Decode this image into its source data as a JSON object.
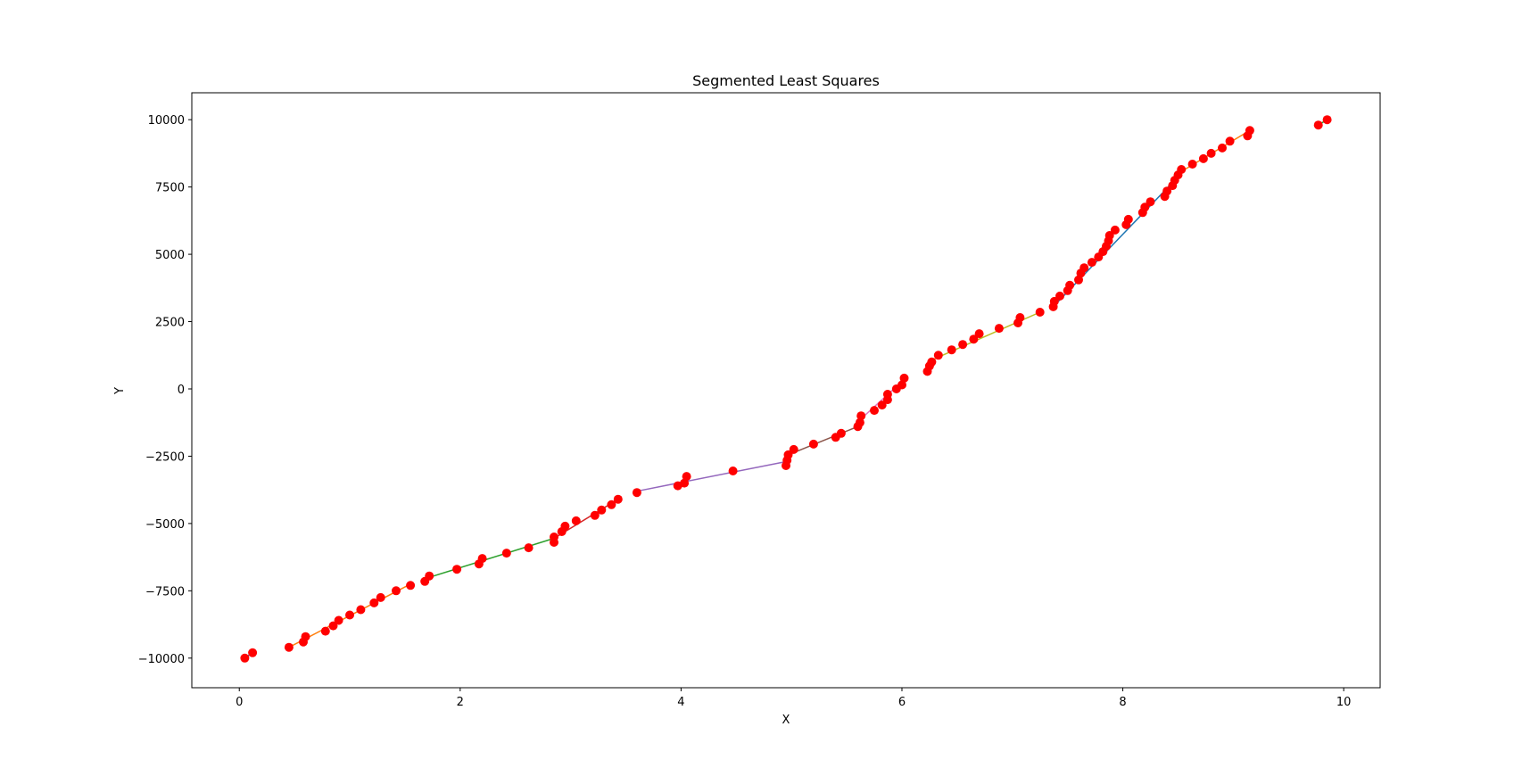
{
  "chart_data": {
    "type": "scatter",
    "title": "Segmented Least Squares",
    "xlabel": "X",
    "ylabel": "Y",
    "xlim": [
      -0.43,
      10.33
    ],
    "ylim": [
      -11100,
      11000
    ],
    "xticks": [
      0,
      2,
      4,
      6,
      8,
      10
    ],
    "yticks": [
      -10000,
      -7500,
      -5000,
      -2500,
      0,
      2500,
      5000,
      7500,
      10000
    ],
    "xtick_labels": [
      "0",
      "2",
      "4",
      "6",
      "8",
      "10"
    ],
    "ytick_labels": [
      "−10000",
      "−7500",
      "−5000",
      "−2500",
      "0",
      "2500",
      "5000",
      "7500",
      "10000"
    ],
    "grid": false,
    "colors": {
      "points": "#ff0000",
      "segments": [
        "#1f77b4",
        "#ff7f0e",
        "#2ca02c",
        "#d62728",
        "#9467bd",
        "#8c564b",
        "#e377c2",
        "#bcbd22",
        "#1f77b4",
        "#ff7f0e",
        "#2ca02c"
      ]
    },
    "points": [
      [
        0.05,
        -10000
      ],
      [
        0.12,
        -9800
      ],
      [
        0.45,
        -9600
      ],
      [
        0.58,
        -9400
      ],
      [
        0.6,
        -9200
      ],
      [
        0.78,
        -9000
      ],
      [
        0.85,
        -8800
      ],
      [
        0.9,
        -8600
      ],
      [
        1.0,
        -8400
      ],
      [
        1.1,
        -8200
      ],
      [
        1.22,
        -7950
      ],
      [
        1.28,
        -7750
      ],
      [
        1.42,
        -7500
      ],
      [
        1.55,
        -7300
      ],
      [
        1.68,
        -7150
      ],
      [
        1.72,
        -6950
      ],
      [
        1.97,
        -6700
      ],
      [
        2.17,
        -6500
      ],
      [
        2.2,
        -6300
      ],
      [
        2.42,
        -6100
      ],
      [
        2.62,
        -5900
      ],
      [
        2.85,
        -5700
      ],
      [
        2.85,
        -5500
      ],
      [
        2.92,
        -5300
      ],
      [
        2.95,
        -5100
      ],
      [
        3.05,
        -4900
      ],
      [
        3.22,
        -4700
      ],
      [
        3.28,
        -4500
      ],
      [
        3.37,
        -4300
      ],
      [
        3.43,
        -4100
      ],
      [
        3.6,
        -3850
      ],
      [
        3.97,
        -3600
      ],
      [
        4.03,
        -3500
      ],
      [
        4.05,
        -3250
      ],
      [
        4.47,
        -3050
      ],
      [
        4.95,
        -2850
      ],
      [
        4.96,
        -2650
      ],
      [
        4.97,
        -2450
      ],
      [
        5.02,
        -2250
      ],
      [
        5.2,
        -2050
      ],
      [
        5.4,
        -1800
      ],
      [
        5.45,
        -1650
      ],
      [
        5.6,
        -1400
      ],
      [
        5.62,
        -1250
      ],
      [
        5.63,
        -1000
      ],
      [
        5.75,
        -800
      ],
      [
        5.82,
        -600
      ],
      [
        5.87,
        -400
      ],
      [
        5.87,
        -200
      ],
      [
        5.95,
        0
      ],
      [
        6.0,
        150
      ],
      [
        6.02,
        400
      ],
      [
        6.23,
        650
      ],
      [
        6.25,
        850
      ],
      [
        6.27,
        1000
      ],
      [
        6.33,
        1250
      ],
      [
        6.45,
        1450
      ],
      [
        6.55,
        1650
      ],
      [
        6.65,
        1850
      ],
      [
        6.7,
        2050
      ],
      [
        6.88,
        2250
      ],
      [
        7.05,
        2450
      ],
      [
        7.07,
        2650
      ],
      [
        7.25,
        2850
      ],
      [
        7.37,
        3050
      ],
      [
        7.38,
        3250
      ],
      [
        7.43,
        3450
      ],
      [
        7.5,
        3650
      ],
      [
        7.52,
        3850
      ],
      [
        7.6,
        4050
      ],
      [
        7.62,
        4300
      ],
      [
        7.65,
        4500
      ],
      [
        7.72,
        4700
      ],
      [
        7.78,
        4900
      ],
      [
        7.82,
        5100
      ],
      [
        7.85,
        5300
      ],
      [
        7.87,
        5500
      ],
      [
        7.88,
        5700
      ],
      [
        7.93,
        5900
      ],
      [
        8.03,
        6100
      ],
      [
        8.05,
        6300
      ],
      [
        8.18,
        6550
      ],
      [
        8.2,
        6750
      ],
      [
        8.25,
        6950
      ],
      [
        8.38,
        7150
      ],
      [
        8.4,
        7350
      ],
      [
        8.45,
        7550
      ],
      [
        8.47,
        7750
      ],
      [
        8.5,
        7950
      ],
      [
        8.53,
        8150
      ],
      [
        8.63,
        8350
      ],
      [
        8.73,
        8550
      ],
      [
        8.8,
        8750
      ],
      [
        8.9,
        8950
      ],
      [
        8.97,
        9200
      ],
      [
        9.13,
        9400
      ],
      [
        9.15,
        9600
      ],
      [
        9.77,
        9800
      ],
      [
        9.85,
        10000
      ]
    ],
    "segments": [
      {
        "x": [
          0.05,
          0.12
        ],
        "y": [
          -10000,
          -9800
        ]
      },
      {
        "x": [
          0.45,
          1.55
        ],
        "y": [
          -9600,
          -7250
        ]
      },
      {
        "x": [
          1.68,
          2.85
        ],
        "y": [
          -7050,
          -5550
        ]
      },
      {
        "x": [
          2.85,
          3.43
        ],
        "y": [
          -5550,
          -4100
        ]
      },
      {
        "x": [
          3.6,
          4.95
        ],
        "y": [
          -3800,
          -2700
        ]
      },
      {
        "x": [
          4.97,
          5.6
        ],
        "y": [
          -2450,
          -1400
        ]
      },
      {
        "x": [
          5.62,
          6.02
        ],
        "y": [
          -1150,
          350
        ]
      },
      {
        "x": [
          6.23,
          7.25
        ],
        "y": [
          1000,
          2850
        ]
      },
      {
        "x": [
          7.37,
          8.47
        ],
        "y": [
          3050,
          7750
        ]
      },
      {
        "x": [
          8.5,
          9.15
        ],
        "y": [
          8000,
          9600
        ]
      },
      {
        "x": [
          9.77,
          9.85
        ],
        "y": [
          9800,
          10000
        ]
      }
    ]
  }
}
